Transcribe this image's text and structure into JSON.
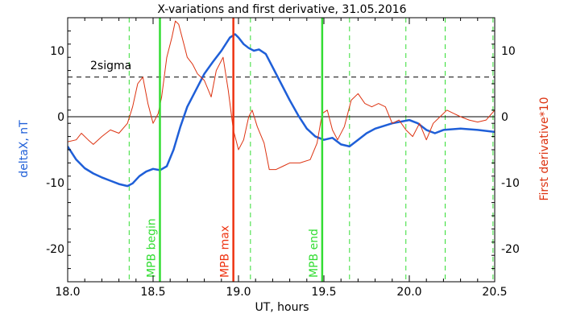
{
  "chart_data": {
    "type": "line",
    "title": "X-variations and first derivative, 31.05.2016",
    "xlabel": "UT, hours",
    "ylabel_left": "deltaX, nT",
    "ylabel_right": "First derivative*10",
    "xlim": [
      18.0,
      20.5
    ],
    "ylim": [
      -25,
      15
    ],
    "x_ticks": [
      "18.0",
      "18.5",
      "19.0",
      "19.5",
      "20.0",
      "20.5"
    ],
    "y_ticks": [
      "-20",
      "-10",
      "0",
      "10"
    ],
    "x_minor_step": 0.1,
    "y_minor_step": 2,
    "threshold_label": "2sigma",
    "threshold_value": 6,
    "zero_line": 0,
    "colors": {
      "deltaX": "#1f5fd8",
      "derivative": "#dd3311",
      "mpb_begin_end": "#33dd33",
      "mpb_max": "#ee3311",
      "dashed_green": "#33dd33",
      "axes": "#000000"
    },
    "vertical_markers": [
      {
        "x": 18.54,
        "label": "MPB begin",
        "color": "#33dd33"
      },
      {
        "x": 18.97,
        "label": "MPB max",
        "color": "#ee3311"
      },
      {
        "x": 19.49,
        "label": "MPB end",
        "color": "#33dd33"
      }
    ],
    "dashed_markers_x": [
      18.36,
      19.07,
      19.65,
      19.98,
      20.21,
      20.49
    ],
    "series": [
      {
        "key": "deltaX",
        "name": "deltaX, nT",
        "color": "#1f5fd8",
        "x": [
          18.0,
          18.05,
          18.1,
          18.15,
          18.2,
          18.25,
          18.3,
          18.35,
          18.38,
          18.42,
          18.46,
          18.5,
          18.54,
          18.58,
          18.62,
          18.66,
          18.7,
          18.75,
          18.8,
          18.85,
          18.9,
          18.95,
          18.98,
          19.0,
          19.03,
          19.06,
          19.09,
          19.12,
          19.16,
          19.2,
          19.25,
          19.3,
          19.35,
          19.4,
          19.45,
          19.5,
          19.55,
          19.6,
          19.65,
          19.7,
          19.75,
          19.8,
          19.9,
          20.0,
          20.05,
          20.1,
          20.15,
          20.2,
          20.3,
          20.4,
          20.5
        ],
        "values": [
          -4.5,
          -6.5,
          -7.8,
          -8.6,
          -9.2,
          -9.7,
          -10.2,
          -10.5,
          -10.1,
          -9.0,
          -8.3,
          -7.9,
          -8.1,
          -7.5,
          -5.0,
          -1.5,
          1.5,
          4.0,
          6.5,
          8.3,
          10.0,
          12.0,
          12.5,
          12.0,
          11.0,
          10.4,
          10.0,
          10.2,
          9.5,
          7.5,
          5.0,
          2.5,
          0.2,
          -1.8,
          -3.0,
          -3.5,
          -3.2,
          -4.2,
          -4.5,
          -3.5,
          -2.5,
          -1.8,
          -1.0,
          -0.5,
          -1.0,
          -2.0,
          -2.5,
          -2.0,
          -1.8,
          -2.0,
          -2.3
        ]
      },
      {
        "key": "derivative",
        "name": "First derivative*10",
        "color": "#dd3311",
        "x": [
          18.0,
          18.05,
          18.08,
          18.12,
          18.15,
          18.2,
          18.25,
          18.3,
          18.35,
          18.38,
          18.41,
          18.44,
          18.47,
          18.5,
          18.53,
          18.55,
          18.58,
          18.61,
          18.63,
          18.65,
          18.68,
          18.7,
          18.73,
          18.76,
          18.8,
          18.84,
          18.87,
          18.91,
          18.94,
          18.97,
          19.0,
          19.03,
          19.06,
          19.08,
          19.11,
          19.15,
          19.18,
          19.22,
          19.26,
          19.3,
          19.36,
          19.42,
          19.46,
          19.49,
          19.52,
          19.55,
          19.58,
          19.62,
          19.66,
          19.7,
          19.74,
          19.78,
          19.82,
          19.86,
          19.9,
          19.94,
          19.98,
          20.02,
          20.06,
          20.1,
          20.14,
          20.18,
          20.22,
          20.26,
          20.3,
          20.35,
          20.4,
          20.45,
          20.5
        ],
        "values": [
          -3.8,
          -3.5,
          -2.5,
          -3.5,
          -4.2,
          -3.0,
          -2.0,
          -2.5,
          -1.0,
          1.5,
          5.0,
          6.0,
          2.0,
          -1.0,
          0.5,
          3.0,
          9.0,
          12.0,
          14.5,
          14.0,
          11.0,
          9.0,
          8.0,
          6.5,
          5.5,
          3.0,
          7.0,
          9.0,
          4.0,
          -2.0,
          -5.0,
          -3.5,
          0.0,
          1.0,
          -1.5,
          -4.0,
          -8.0,
          -8.0,
          -7.5,
          -7.0,
          -7.0,
          -6.5,
          -4.0,
          0.5,
          1.0,
          -2.0,
          -3.5,
          -1.5,
          2.5,
          3.5,
          2.0,
          1.5,
          2.0,
          1.5,
          -1.0,
          -0.5,
          -2.0,
          -3.0,
          -1.0,
          -3.5,
          -1.0,
          0.0,
          1.0,
          0.5,
          0.0,
          -0.5,
          -0.8,
          -0.5,
          1.0
        ]
      }
    ]
  }
}
